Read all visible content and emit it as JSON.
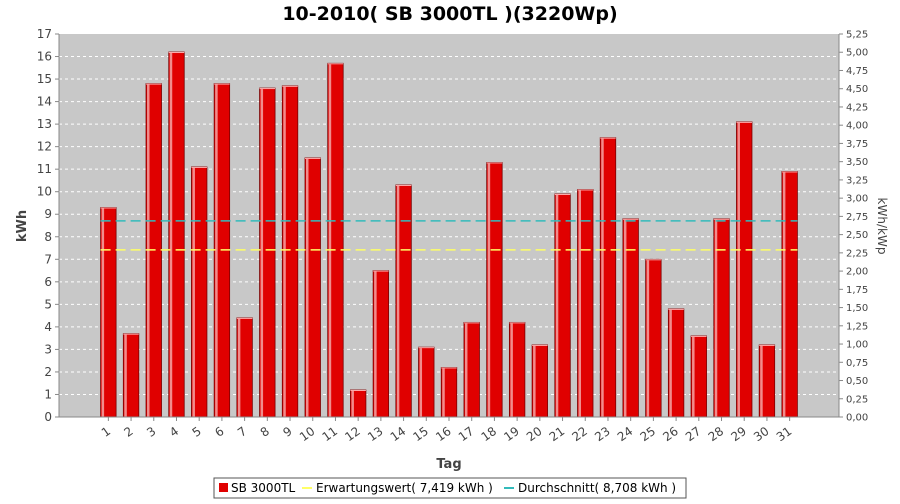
{
  "chart_data": {
    "type": "bar",
    "title": "10-2010( SB 3000TL )(3220Wp)",
    "xlabel": "Tag",
    "ylabel": "kWh",
    "y2label": "kWh/kWp",
    "ylim": [
      0,
      17
    ],
    "y2lim": [
      0,
      5.25
    ],
    "categories": [
      "1",
      "2",
      "3",
      "4",
      "5",
      "6",
      "7",
      "8",
      "9",
      "10",
      "11",
      "12",
      "13",
      "14",
      "15",
      "16",
      "17",
      "18",
      "19",
      "20",
      "21",
      "22",
      "23",
      "24",
      "25",
      "26",
      "27",
      "28",
      "29",
      "30",
      "31"
    ],
    "yticks": [
      "0",
      "1",
      "2",
      "3",
      "4",
      "5",
      "6",
      "7",
      "8",
      "9",
      "10",
      "11",
      "12",
      "13",
      "14",
      "15",
      "16",
      "17"
    ],
    "y2ticks": [
      "0,00",
      "0,25",
      "0,50",
      "0,75",
      "1,00",
      "1,25",
      "1,50",
      "1,75",
      "2,00",
      "2,25",
      "2,50",
      "2,75",
      "3,00",
      "3,25",
      "3,50",
      "3,75",
      "4,00",
      "4,25",
      "4,50",
      "4,75",
      "5,00",
      "5,25"
    ],
    "series": [
      {
        "name": "SB 3000TL",
        "type": "bar",
        "color": "#e00000",
        "values": [
          9.3,
          3.7,
          14.8,
          16.2,
          11.1,
          14.8,
          4.4,
          14.6,
          14.7,
          11.5,
          15.7,
          1.2,
          6.5,
          10.3,
          3.1,
          2.2,
          4.2,
          11.3,
          4.2,
          3.2,
          9.9,
          10.1,
          12.4,
          8.8,
          7.0,
          4.8,
          3.6,
          8.8,
          13.1,
          3.2,
          10.9
        ]
      },
      {
        "name": "Erwartungswert( 7,419 kWh )",
        "type": "line",
        "color": "#ffff66",
        "value": 7.419
      },
      {
        "name": "Durchschnitt( 8,708 kWh )",
        "type": "line",
        "color": "#33bbbb",
        "value": 8.708
      }
    ],
    "grid": true,
    "legend": "bottom-center",
    "plot_background": "#c8c8c8"
  }
}
